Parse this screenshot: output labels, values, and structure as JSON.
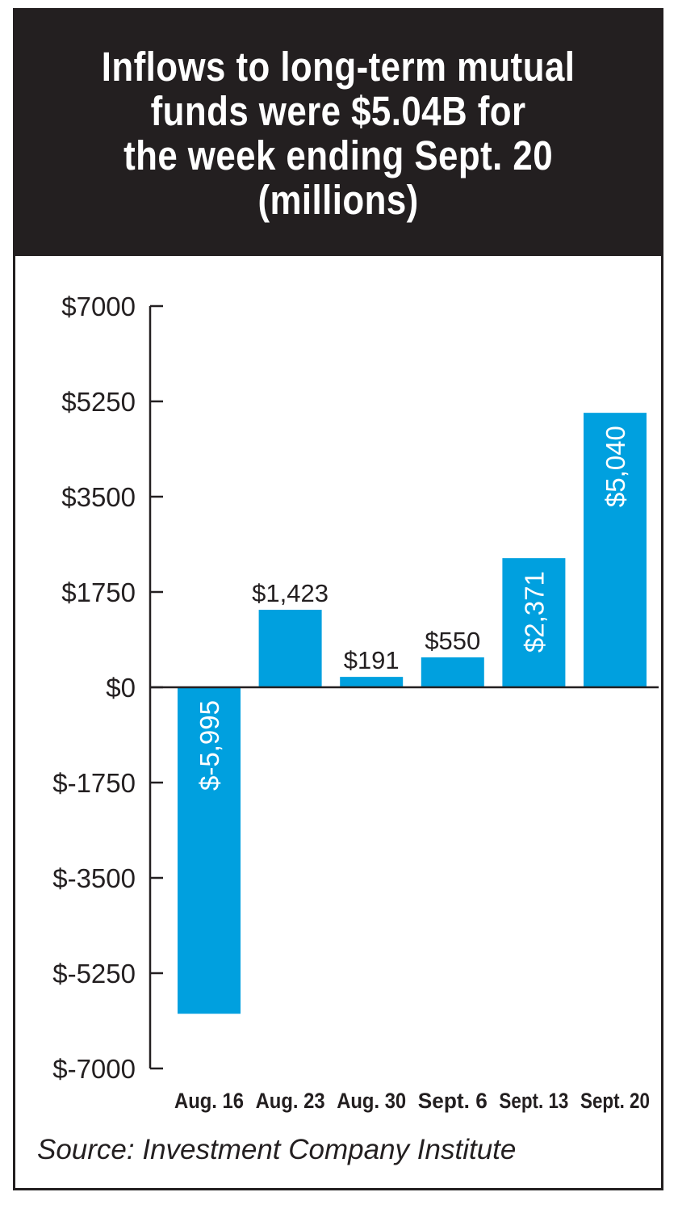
{
  "chart_data": {
    "type": "bar",
    "title": "Inflows to long-term mutual\nfunds were $5.04B for\nthe week ending Sept. 20\n(millions)",
    "categories": [
      "Aug. 16",
      "Aug. 23",
      "Aug. 30",
      "Sept. 6",
      "Sept. 13",
      "Sept. 20"
    ],
    "values": [
      -5995,
      1423,
      191,
      550,
      2371,
      5040
    ],
    "value_labels": [
      "$-5,995",
      "$1,423",
      "$191",
      "$550",
      "$2,371",
      "$5,040"
    ],
    "value_labels_inside_vertical": [
      true,
      false,
      false,
      false,
      true,
      true
    ],
    "ylim": [
      -7000,
      7000
    ],
    "yticks": [
      7000,
      5250,
      3500,
      1750,
      0,
      -1750,
      -3500,
      -5250,
      -7000
    ],
    "ytick_labels": [
      "$7000",
      "$5250",
      "$3500",
      "$1750",
      "$0",
      "$-1750",
      "$-3500",
      "$-5250",
      "$-7000"
    ],
    "xlabel": "",
    "ylabel": "",
    "grid": false,
    "bar_color": "#00a0df",
    "axis_color": "#231f20"
  },
  "source": "Source: Investment Company Institute"
}
